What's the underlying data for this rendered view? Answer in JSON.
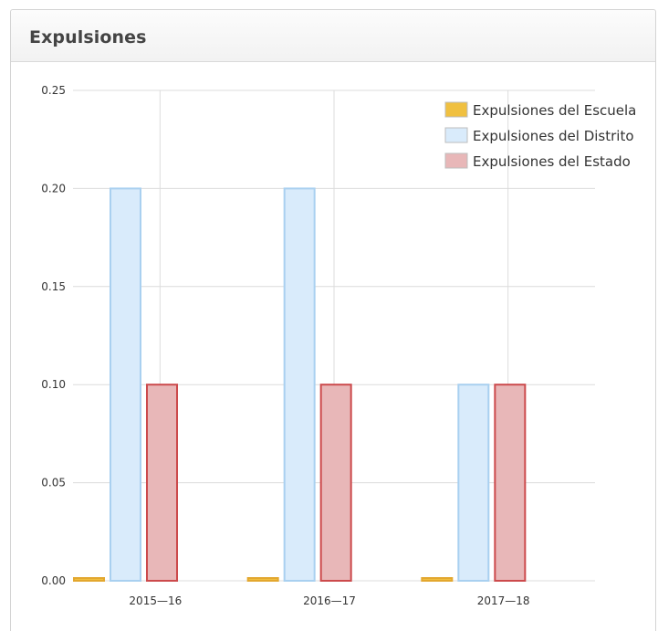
{
  "panel": {
    "title": "Expulsiones"
  },
  "chart_data": {
    "type": "bar",
    "title": "Expulsiones",
    "categories": [
      "2015—16",
      "2016—17",
      "2017—18"
    ],
    "series": [
      {
        "name": "Expulsiones del Escuela",
        "values": [
          0.0,
          0.0,
          0.0
        ],
        "color": "#f0c040",
        "stroke": "#e3a72f"
      },
      {
        "name": "Expulsiones del Distrito",
        "values": [
          0.2,
          0.2,
          0.1
        ],
        "color": "#d9ebfb",
        "stroke": "#a9d0f0"
      },
      {
        "name": "Expulsiones del Estado",
        "values": [
          0.1,
          0.1,
          0.1
        ],
        "color": "#e8b7b8",
        "stroke": "#cc4a4c"
      }
    ],
    "ylim": [
      0,
      0.25
    ],
    "yticks": [
      "0.00",
      "0.05",
      "0.10",
      "0.15",
      "0.20",
      "0.25"
    ],
    "grid": true,
    "legend": "top-right",
    "xlabel": "",
    "ylabel": ""
  }
}
